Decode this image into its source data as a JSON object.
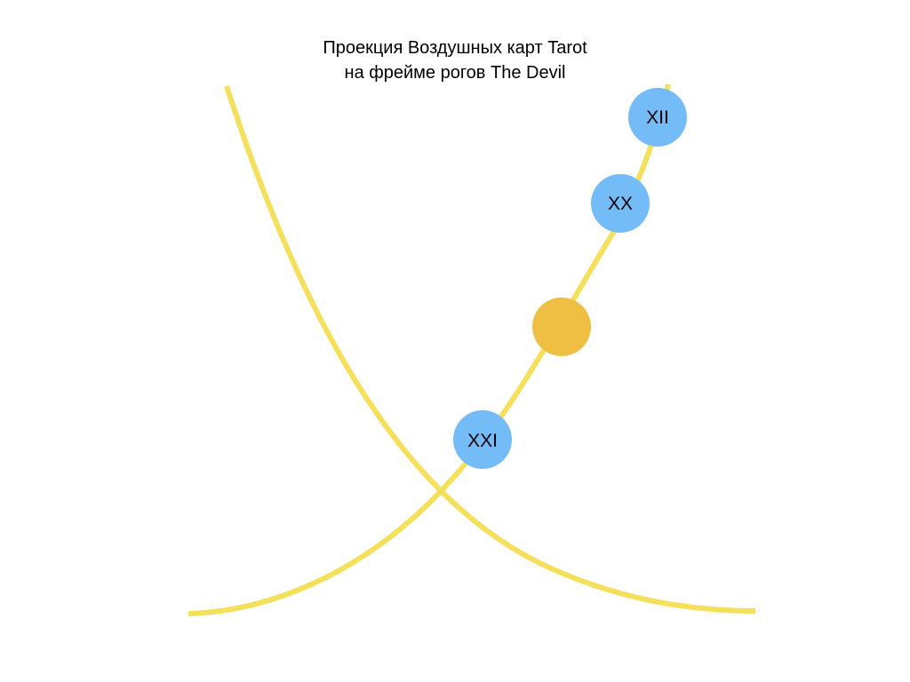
{
  "title": {
    "line1": "Проекция Воздушных карт Tarot",
    "line2": "на фрейме рогов The Devil"
  },
  "colors": {
    "horn": "#f5e05c",
    "card_node": "#74bcf8",
    "center_node": "#eebf43",
    "label": "#000000",
    "background": "#ffffff"
  },
  "horns": [
    {
      "name": "left-horn"
    },
    {
      "name": "right-horn"
    }
  ],
  "nodes": [
    {
      "name": "card-node-xii",
      "label": "XII",
      "kind": "card"
    },
    {
      "name": "card-node-xx",
      "label": "XX",
      "kind": "card"
    },
    {
      "name": "center-node",
      "label": "",
      "kind": "center"
    },
    {
      "name": "card-node-xxi",
      "label": "XXI",
      "kind": "card"
    }
  ]
}
